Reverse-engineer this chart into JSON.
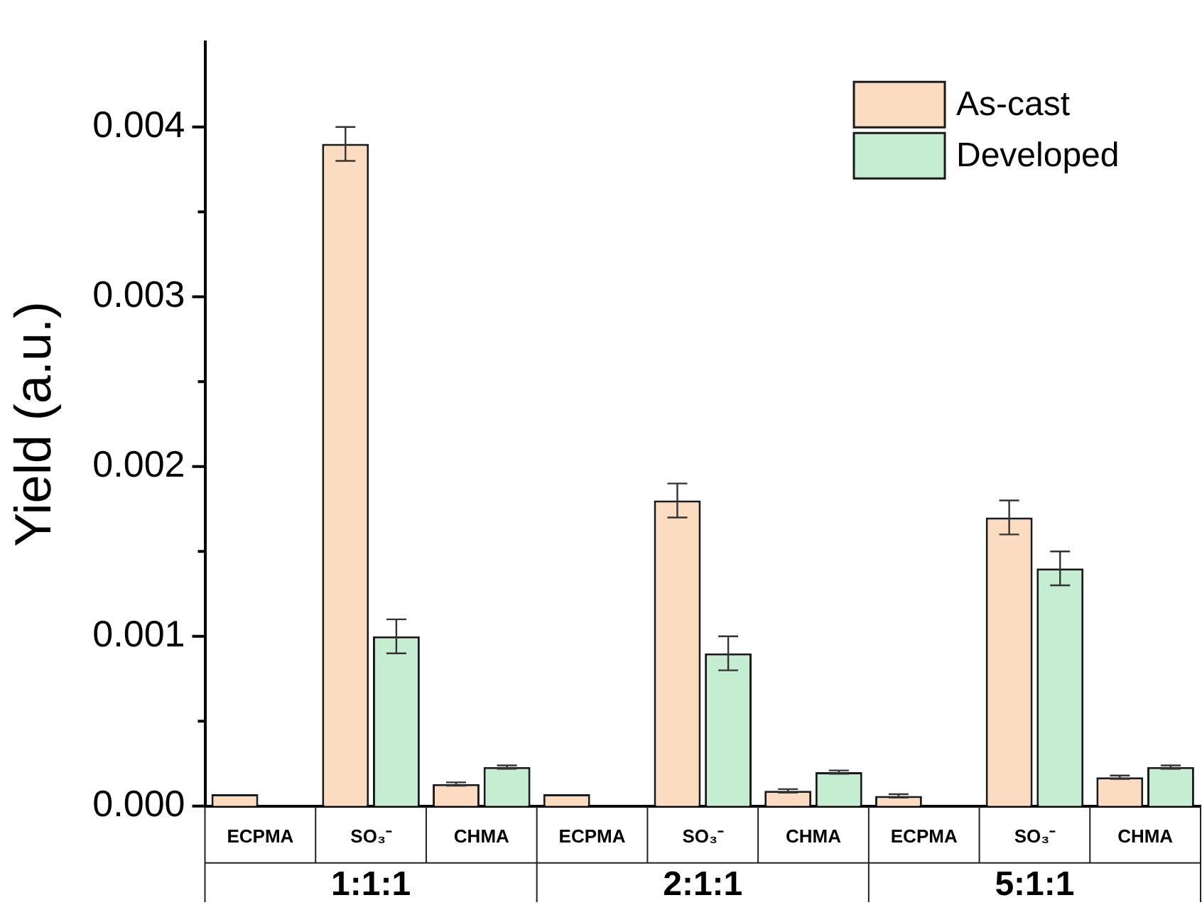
{
  "chart_data": {
    "type": "bar",
    "ylabel": "Yield (a.u.)",
    "categories": [
      "ECPMA",
      "SO₃⁻",
      "CHMA",
      "ECPMA",
      "SO₃⁻",
      "CHMA",
      "ECPMA",
      "SO₃⁻",
      "CHMA"
    ],
    "annotations": [
      "1:1:1",
      "2:1:1",
      "5:1:1"
    ],
    "series": [
      {
        "name": "As-cast",
        "color": "#fbdcc0",
        "values": [
          7e-05,
          0.0039,
          0.00013,
          7e-05,
          0.0018,
          9e-05,
          6e-05,
          0.0017,
          0.00017
        ],
        "errors": [
          null,
          0.0001,
          1e-05,
          null,
          0.0001,
          1e-05,
          1e-05,
          0.0001,
          1e-05
        ]
      },
      {
        "name": "Developed",
        "color": "#c5edd2",
        "values": [
          0,
          0.001,
          0.00023,
          0,
          0.0009,
          0.0002,
          0,
          0.0014,
          0.00023
        ],
        "errors": [
          null,
          0.0001,
          1e-05,
          null,
          0.0001,
          1e-05,
          null,
          0.0001,
          1e-05
        ]
      }
    ],
    "ylim": [
      0,
      0.0045
    ],
    "yticks": [
      {
        "value": 0,
        "label": "0.000"
      },
      {
        "value": 0.0005,
        "label": null
      },
      {
        "value": 0.001,
        "label": "0.001"
      },
      {
        "value": 0.0015,
        "label": null
      },
      {
        "value": 0.002,
        "label": "0.002"
      },
      {
        "value": 0.0025,
        "label": null
      },
      {
        "value": 0.003,
        "label": "0.003"
      },
      {
        "value": 0.0035,
        "label": null
      },
      {
        "value": 0.004,
        "label": "0.004"
      }
    ],
    "grid": false,
    "legend": "top right"
  }
}
